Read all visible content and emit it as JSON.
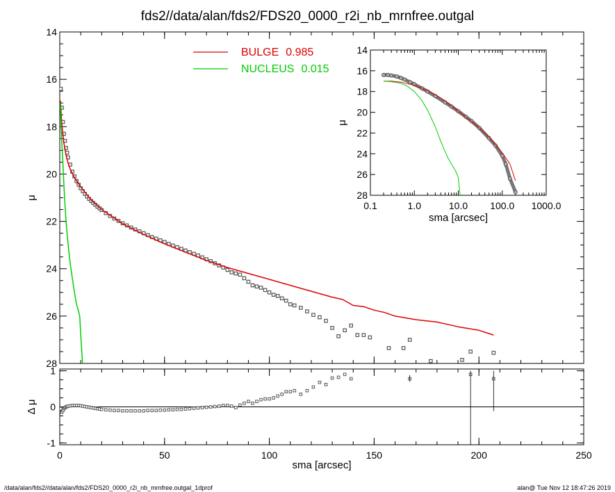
{
  "title": "fds2//data/alan/fds2/FDS20_0000_r2i_nb_mrnfree.outgal",
  "footer": {
    "left": "/data/alan/fds2//data/alan/fds2/FDS20_0000_r2i_nb_mrnfree.outgal_1dprof",
    "right": "alan@  Tue Nov 12 18:47:26 2019"
  },
  "colors": {
    "bulge": "#dd0000",
    "nucleus": "#00cc00",
    "data": "#555555",
    "axis": "#000000"
  },
  "chart_data": [
    {
      "id": "main-profile",
      "type": "scatter",
      "ylabel": "μ",
      "xlim": [
        0,
        250
      ],
      "ylim": [
        14,
        28
      ],
      "y_inverted": true,
      "x_ticks": [
        0,
        50,
        100,
        150,
        200,
        250
      ],
      "y_ticks": [
        14,
        16,
        18,
        20,
        22,
        24,
        26,
        28
      ],
      "legend": [
        {
          "name": "BULGE",
          "value": "0.985",
          "color": "#dd0000"
        },
        {
          "name": "NUCLEUS",
          "value": "0.015",
          "color": "#00cc00"
        }
      ],
      "data_points": {
        "x": [
          0.5,
          1,
          1.5,
          2,
          2.5,
          3,
          3.5,
          4,
          5,
          6,
          7,
          8,
          9,
          10,
          11,
          12,
          13,
          14,
          15,
          16,
          17,
          18,
          19,
          20,
          22,
          24,
          26,
          28,
          30,
          32,
          34,
          36,
          38,
          40,
          42,
          44,
          46,
          48,
          50,
          52,
          54,
          56,
          58,
          60,
          62,
          64,
          66,
          68,
          70,
          72,
          74,
          76,
          78,
          80,
          82,
          84,
          86,
          88,
          90,
          92,
          94,
          96,
          98,
          100,
          102,
          104,
          106,
          108,
          110,
          112,
          115,
          118,
          121,
          124,
          127,
          130,
          133,
          136,
          139,
          142,
          145,
          148,
          157,
          164,
          167,
          177,
          192,
          196,
          207
        ],
        "y": [
          16.4,
          17.2,
          17.8,
          18.3,
          18.6,
          18.9,
          19.1,
          19.3,
          19.6,
          19.9,
          20.1,
          20.3,
          20.45,
          20.6,
          20.72,
          20.84,
          20.95,
          21.05,
          21.14,
          21.22,
          21.3,
          21.38,
          21.45,
          21.52,
          21.65,
          21.77,
          21.88,
          21.98,
          22.08,
          22.17,
          22.26,
          22.34,
          22.42,
          22.5,
          22.58,
          22.66,
          22.73,
          22.8,
          22.87,
          22.95,
          23.02,
          23.09,
          23.16,
          23.23,
          23.3,
          23.37,
          23.44,
          23.52,
          23.6,
          23.68,
          23.77,
          23.86,
          23.95,
          24.05,
          24.15,
          24.2,
          24.25,
          24.4,
          24.55,
          24.7,
          24.75,
          24.8,
          24.9,
          25.0,
          25.1,
          25.15,
          25.25,
          25.35,
          25.5,
          25.55,
          25.65,
          25.8,
          25.95,
          26.05,
          26.2,
          26.5,
          26.85,
          26.6,
          26.4,
          26.8,
          26.8,
          26.9,
          27.35,
          27.35,
          27.0,
          27.9,
          27.85,
          27.5,
          27.55
        ]
      },
      "series": [
        {
          "name": "BULGE",
          "x": [
            0.3,
            1,
            2,
            3,
            4,
            5,
            7,
            10,
            15,
            20,
            30,
            40,
            50,
            60,
            70,
            80,
            90,
            100,
            110,
            120,
            130,
            135,
            140,
            145,
            150,
            155,
            160,
            170,
            175,
            180,
            190,
            200,
            207
          ],
          "y": [
            16.9,
            17.9,
            18.7,
            19.2,
            19.55,
            19.8,
            20.15,
            20.55,
            21.1,
            21.5,
            22.1,
            22.55,
            22.95,
            23.3,
            23.65,
            23.95,
            24.2,
            24.45,
            24.7,
            24.95,
            25.2,
            25.3,
            25.55,
            25.6,
            25.75,
            25.85,
            26.0,
            26.15,
            26.2,
            26.25,
            26.45,
            26.6,
            26.8
          ]
        },
        {
          "name": "NUCLEUS",
          "x": [
            0.3,
            0.6,
            1,
            1.5,
            2,
            2.5,
            3,
            4,
            5,
            6,
            7,
            8,
            9,
            9.5,
            10,
            10.5,
            11
          ],
          "y": [
            17.0,
            17.9,
            18.7,
            19.5,
            20.5,
            21.3,
            22.0,
            23.0,
            23.8,
            24.4,
            25.0,
            25.5,
            25.8,
            26.0,
            26.8,
            27.5,
            28.2
          ]
        }
      ]
    },
    {
      "id": "inset-log",
      "type": "scatter",
      "xlabel": "sma [arcsec]",
      "ylabel": "μ",
      "x_scale": "log",
      "xlim": [
        0.1,
        1000
      ],
      "ylim": [
        14,
        28
      ],
      "y_inverted": true,
      "x_tick_labels": [
        "0.1",
        "1.0",
        "10.0",
        "100.0",
        "1000.0"
      ],
      "y_ticks": [
        14,
        16,
        18,
        20,
        22,
        24,
        26,
        28
      ],
      "data_points": {
        "x": [
          0.2,
          0.25,
          0.3,
          0.4,
          0.5,
          0.6,
          0.8,
          1.0,
          1.5,
          2,
          3,
          5,
          7,
          10,
          15,
          20,
          30,
          50,
          70,
          100,
          120,
          150,
          200
        ],
        "y": [
          16.4,
          16.4,
          16.45,
          16.55,
          16.7,
          16.85,
          17.1,
          17.3,
          17.7,
          18.0,
          18.45,
          19.05,
          19.45,
          19.9,
          20.45,
          20.85,
          21.5,
          22.5,
          23.2,
          24.2,
          25.0,
          26.4,
          27.7
        ]
      },
      "series": [
        {
          "name": "BULGE",
          "x": [
            0.2,
            0.3,
            0.5,
            1,
            2,
            3,
            5,
            10,
            20,
            30,
            50,
            100,
            150,
            200
          ],
          "y": [
            17.0,
            17.0,
            17.1,
            17.4,
            17.9,
            18.3,
            18.9,
            19.9,
            20.9,
            21.5,
            22.4,
            23.9,
            25.0,
            26.6
          ]
        },
        {
          "name": "NUCLEUS",
          "x": [
            0.2,
            0.3,
            0.5,
            0.7,
            1,
            1.5,
            2,
            3,
            4,
            5,
            6,
            7,
            8,
            9,
            10,
            11
          ],
          "y": [
            17.0,
            17.05,
            17.2,
            17.5,
            18.0,
            18.9,
            19.8,
            21.4,
            22.8,
            23.8,
            24.5,
            25.0,
            25.4,
            25.8,
            26.3,
            28.0
          ]
        }
      ]
    },
    {
      "id": "residuals",
      "type": "scatter",
      "xlabel": "sma [arcsec]",
      "ylabel": "Δ μ",
      "xlim": [
        0,
        250
      ],
      "ylim": [
        -1.05,
        1.05
      ],
      "x_ticks": [
        0,
        50,
        100,
        150,
        200,
        250
      ],
      "y_ticks": [
        -1,
        0,
        1
      ],
      "zero_line": 0,
      "data_points": {
        "x": [
          0.5,
          1,
          1.5,
          2,
          2.5,
          3,
          3.5,
          4,
          5,
          6,
          7,
          8,
          9,
          10,
          11,
          12,
          13,
          14,
          15,
          16,
          17,
          18,
          19,
          20,
          22,
          24,
          26,
          28,
          30,
          32,
          34,
          36,
          38,
          40,
          42,
          44,
          46,
          48,
          50,
          52,
          54,
          56,
          58,
          60,
          62,
          64,
          66,
          68,
          70,
          72,
          74,
          76,
          78,
          80,
          82,
          84,
          86,
          88,
          90,
          92,
          94,
          96,
          98,
          100,
          102,
          104,
          106,
          108,
          110,
          112,
          115,
          118,
          121,
          124,
          127,
          130,
          133,
          136,
          139,
          167,
          196,
          207
        ],
        "y": [
          -0.05,
          -0.15,
          -0.1,
          -0.05,
          -0.02,
          0.0,
          0.01,
          0.02,
          0.03,
          0.04,
          0.04,
          0.04,
          0.04,
          0.03,
          0.02,
          0.01,
          0.0,
          -0.01,
          -0.02,
          -0.03,
          -0.04,
          -0.05,
          -0.06,
          -0.07,
          -0.08,
          -0.09,
          -0.1,
          -0.1,
          -0.11,
          -0.11,
          -0.11,
          -0.11,
          -0.11,
          -0.11,
          -0.1,
          -0.1,
          -0.1,
          -0.09,
          -0.09,
          -0.08,
          -0.08,
          -0.07,
          -0.07,
          -0.06,
          -0.05,
          -0.04,
          -0.03,
          -0.02,
          -0.01,
          0.0,
          0.01,
          0.02,
          0.04,
          0.04,
          0.02,
          -0.02,
          0.05,
          0.1,
          0.15,
          0.1,
          0.15,
          0.2,
          0.22,
          0.22,
          0.25,
          0.3,
          0.35,
          0.42,
          0.42,
          0.45,
          0.35,
          0.45,
          0.55,
          0.68,
          0.62,
          0.8,
          0.82,
          0.9,
          0.78,
          0.78,
          0.9,
          0.78
        ]
      },
      "error_bars": [
        {
          "x": 167,
          "y": 0.78,
          "low": 0.7,
          "high": 0.88
        },
        {
          "x": 196,
          "y": 0.9,
          "low": -1.05,
          "high": 1.0
        },
        {
          "x": 207,
          "y": 0.78,
          "low": -0.12,
          "high": 1.0
        }
      ]
    }
  ]
}
